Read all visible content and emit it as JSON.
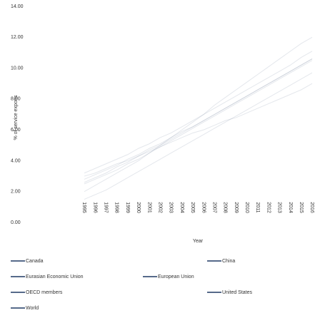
{
  "chart_data": {
    "type": "line",
    "ylabel": "% of service exports",
    "xlabel": "Year",
    "categories": [
      "1995",
      "1996",
      "1997",
      "1998",
      "1999",
      "2000",
      "2001",
      "2002",
      "2003",
      "2004",
      "2005",
      "2006",
      "2007",
      "2008",
      "2009",
      "2010",
      "2011",
      "2012",
      "2013",
      "2014",
      "2015",
      "2016"
    ],
    "ylim": [
      0,
      14
    ],
    "yticks": [
      {
        "value": 0,
        "label": "0.00"
      },
      {
        "value": 2,
        "label": "2.00"
      },
      {
        "value": 4,
        "label": "4.00"
      },
      {
        "value": 6,
        "label": "6.00"
      },
      {
        "value": 8,
        "label": "8.00"
      },
      {
        "value": 10,
        "label": "10.00"
      },
      {
        "value": 12,
        "label": "12.00"
      },
      {
        "value": 14,
        "label": "14.00"
      }
    ],
    "series": [
      {
        "name": "Canada",
        "color": "#1f3864",
        "values": [
          3.0,
          3.2,
          3.5,
          3.8,
          4.0,
          4.3,
          4.6,
          4.9,
          5.2,
          5.5,
          5.8,
          6.0,
          6.3,
          6.6,
          6.8,
          7.1,
          7.4,
          7.7,
          8.0,
          8.3,
          8.6,
          9.0
        ]
      },
      {
        "name": "China",
        "color": "#1f3864",
        "values": [
          2.0,
          2.4,
          2.8,
          3.2,
          3.6,
          4.0,
          4.5,
          5.0,
          5.5,
          6.0,
          6.5,
          7.0,
          7.6,
          8.1,
          8.6,
          9.1,
          9.6,
          10.1,
          10.6,
          11.1,
          11.6,
          12.0
        ]
      },
      {
        "name": "Eurasian Economic Union",
        "color": "#1f3864",
        "values": [
          1.5,
          1.8,
          2.1,
          2.5,
          2.9,
          3.3,
          3.7,
          4.1,
          4.5,
          4.9,
          5.3,
          5.7,
          6.1,
          6.5,
          6.9,
          7.3,
          7.7,
          8.1,
          8.5,
          8.9,
          9.3,
          9.7
        ]
      },
      {
        "name": "European Union",
        "color": "#1f3864",
        "values": [
          2.5,
          2.8,
          3.1,
          3.4,
          3.8,
          4.1,
          4.5,
          4.9,
          5.3,
          5.7,
          6.1,
          6.5,
          6.9,
          7.3,
          7.7,
          8.1,
          8.5,
          8.9,
          9.3,
          9.7,
          10.1,
          10.5
        ]
      },
      {
        "name": "OECD members",
        "color": "#1f3864",
        "values": [
          2.8,
          3.1,
          3.4,
          3.7,
          4.1,
          4.4,
          4.8,
          5.1,
          5.5,
          5.9,
          6.2,
          6.6,
          7.0,
          7.4,
          7.8,
          8.2,
          8.6,
          9.0,
          9.4,
          9.8,
          10.2,
          10.6
        ]
      },
      {
        "name": "United States",
        "color": "#1f3864",
        "values": [
          3.2,
          3.5,
          3.8,
          4.1,
          4.4,
          4.8,
          5.1,
          5.5,
          5.8,
          6.2,
          6.6,
          7.0,
          7.4,
          7.8,
          8.2,
          8.6,
          9.0,
          9.4,
          9.8,
          10.2,
          10.7,
          11.1
        ]
      },
      {
        "name": "World",
        "color": "#1f3864",
        "values": [
          2.6,
          2.9,
          3.2,
          3.6,
          3.9,
          4.3,
          4.7,
          5.0,
          5.4,
          5.8,
          6.2,
          6.6,
          7.0,
          7.4,
          7.8,
          8.2,
          8.6,
          9.0,
          9.4,
          9.8,
          10.2,
          10.6
        ]
      }
    ]
  }
}
